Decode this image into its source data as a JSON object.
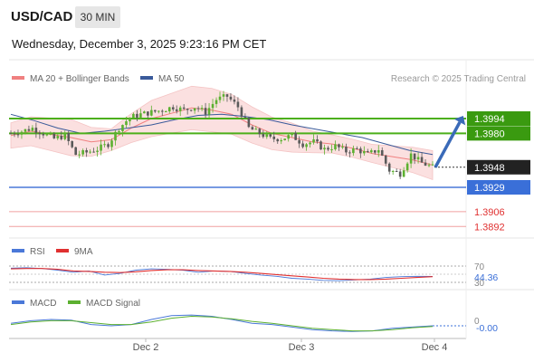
{
  "header": {
    "symbol": "USD/CAD",
    "timeframe": "30 MIN",
    "datetime": "Wednesday, December 3, 2025 9:23:16 PM CET"
  },
  "legend": {
    "ma20": "MA 20 + Bollinger Bands",
    "ma50": "MA 50",
    "credit": "Research © 2025 Trading Central",
    "rsi": "RSI",
    "rsi_ma": "9MA",
    "macd": "MACD",
    "macd_signal": "MACD Signal"
  },
  "colors": {
    "ma20": "#f08080",
    "ma50": "#3a5a9a",
    "band_fill": "#fbe0e0",
    "resistance": "#4caf1a",
    "support": "#4a78d8",
    "support_weak": "#f0a0a0",
    "label_green": "#3a9a10",
    "label_blue": "#3a6fd8",
    "label_red": "#e03030",
    "current": "#222222",
    "up_candle": "#5cb030",
    "down_candle": "#5a5a5a",
    "arrow": "#3a6ab8",
    "macd_line": "#4a78d8",
    "signal_line": "#5cb030"
  },
  "levels": [
    {
      "value": 1.3994,
      "label": "1.3994",
      "kind": "resistance"
    },
    {
      "value": 1.398,
      "label": "1.3980",
      "kind": "resistance"
    },
    {
      "value": 1.3948,
      "label": "1.3948",
      "kind": "current"
    },
    {
      "value": 1.3929,
      "label": "1.3929",
      "kind": "support"
    },
    {
      "value": 1.3906,
      "label": "1.3906",
      "kind": "support_weak"
    },
    {
      "value": 1.3892,
      "label": "1.3892",
      "kind": "support_weak"
    }
  ],
  "chart_data": [
    {
      "type": "candlestick",
      "title": "USD/CAD 30 MIN",
      "x_ticks": [
        "Dec 2",
        "Dec 3",
        "Dec 4"
      ],
      "ylim": [
        1.388,
        1.403
      ],
      "price_path": [
        1.398,
        1.3982,
        1.3985,
        1.398,
        1.3975,
        1.3978,
        1.396,
        1.3962,
        1.3965,
        1.397,
        1.3985,
        1.3995,
        1.3998,
        1.4,
        1.4002,
        1.4005,
        1.4002,
        1.4005,
        1.4,
        1.4012,
        1.4015,
        1.4005,
        1.3985,
        1.398,
        1.3975,
        1.3975,
        1.3978,
        1.397,
        1.3972,
        1.3965,
        1.3968,
        1.3963,
        1.3965,
        1.396,
        1.3965,
        1.3945,
        1.3942,
        1.396,
        1.3952,
        1.3948
      ],
      "ma20_path": [
        1.3978,
        1.3982,
        1.3979,
        1.3976,
        1.3972,
        1.3974,
        1.3985,
        1.3994,
        1.3999,
        1.4004,
        1.4002,
        1.3998,
        1.3988,
        1.398,
        1.3976,
        1.3972,
        1.397,
        1.3966,
        1.3961,
        1.3958,
        1.3955,
        1.395
      ],
      "ma50_path": [
        1.3998,
        1.3992,
        1.3985,
        1.398,
        1.3982,
        1.3985,
        1.3988,
        1.3993,
        1.3997,
        1.3998,
        1.3996,
        1.3993,
        1.3988,
        1.3984,
        1.398,
        1.3976,
        1.397,
        1.3964,
        1.396
      ],
      "forecast": {
        "from": 1.3948,
        "to": 1.3994
      }
    },
    {
      "type": "line",
      "title": "RSI",
      "y_ticks": [
        70,
        30
      ],
      "last_value": "44.36",
      "series": [
        {
          "name": "RSI",
          "values": [
            65,
            66,
            64,
            60,
            55,
            58,
            48,
            52,
            60,
            63,
            62,
            60,
            55,
            58,
            57,
            52,
            48,
            45,
            40,
            38,
            35,
            34,
            36,
            38,
            42,
            44,
            45,
            44.36
          ]
        },
        {
          "name": "9MA",
          "values": [
            63,
            64,
            64,
            62,
            58,
            57,
            55,
            54,
            56,
            59,
            61,
            61,
            59,
            58,
            57,
            55,
            52,
            49,
            46,
            43,
            40,
            38,
            37,
            37,
            38,
            40,
            42,
            44
          ]
        }
      ]
    },
    {
      "type": "line",
      "title": "MACD",
      "y_ticks": [
        0
      ],
      "last_value": "-0.00",
      "series": [
        {
          "name": "MACD",
          "values": [
            0.2,
            0.4,
            0.5,
            0.45,
            0.1,
            0.0,
            0.1,
            0.5,
            0.8,
            0.85,
            0.75,
            0.5,
            0.2,
            0.1,
            -0.1,
            -0.3,
            -0.4,
            -0.45,
            -0.4,
            -0.2,
            -0.1,
            0.0
          ]
        },
        {
          "name": "MACD Signal",
          "values": [
            0.1,
            0.3,
            0.4,
            0.4,
            0.25,
            0.1,
            0.1,
            0.3,
            0.6,
            0.75,
            0.7,
            0.55,
            0.35,
            0.2,
            0.0,
            -0.2,
            -0.3,
            -0.4,
            -0.4,
            -0.3,
            -0.15,
            -0.05
          ]
        }
      ]
    }
  ]
}
